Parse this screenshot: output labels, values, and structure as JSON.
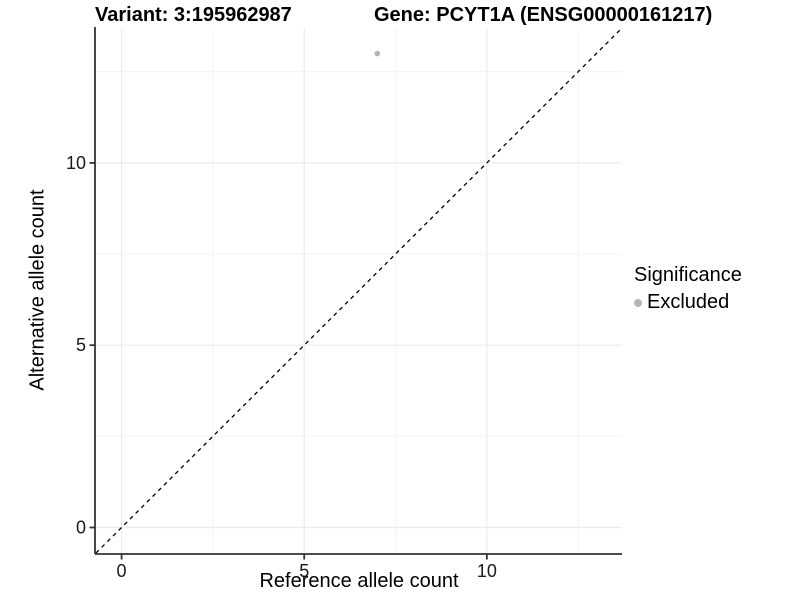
{
  "header": {
    "variant_title": "Variant: 3:195962987",
    "gene_title": "Gene: PCYT1A (ENSG00000161217)"
  },
  "legend": {
    "title": "Significance",
    "items": [
      {
        "label": "Excluded",
        "color": "#b5b5b5"
      }
    ]
  },
  "chart_data": {
    "type": "scatter",
    "title_left": "Variant: 3:195962987",
    "title_right": "Gene: PCYT1A (ENSG00000161217)",
    "xlabel": "Reference allele count",
    "ylabel": "Alternative allele count",
    "xlim": [
      -0.7,
      13.7
    ],
    "ylim": [
      -0.7,
      13.7
    ],
    "x_major_ticks": [
      0,
      5,
      10
    ],
    "y_major_ticks": [
      0,
      5,
      10
    ],
    "x_minor_ticks": [
      2.5,
      7.5,
      12.5
    ],
    "y_minor_ticks": [
      2.5,
      7.5,
      12.5
    ],
    "grid": "major+minor",
    "legend_position": "right",
    "series": [
      {
        "name": "Excluded",
        "color": "#b5b5b5",
        "points": [
          {
            "x": 7,
            "y": 13
          }
        ]
      }
    ],
    "reference_line": {
      "kind": "identity",
      "slope": 1,
      "intercept": 0,
      "style": "dashed",
      "color": "#000000"
    },
    "style": {
      "grid_major_color": "#ebebeb",
      "grid_minor_color": "#f4f4f4",
      "axis_line_color": "#333333",
      "tick_color": "#333333",
      "tick_label_color": "#1a1a1a",
      "tick_label_size": 18,
      "point_radius": 2.8
    }
  }
}
